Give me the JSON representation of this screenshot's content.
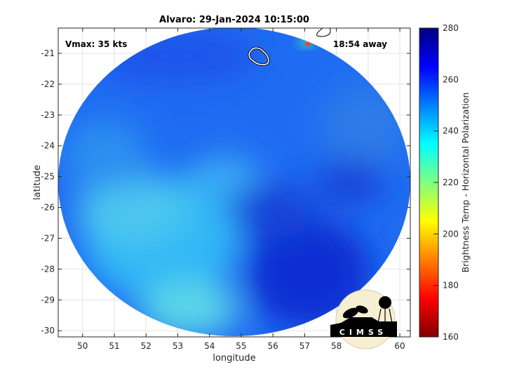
{
  "title": "Alvaro: 29-Jan-2024 10:15:00",
  "annotations": {
    "vmax": "Vmax: 35 kts",
    "away": "18:54 away"
  },
  "xaxis": {
    "label": "longitude",
    "range": [
      49.23,
      60.33
    ],
    "ticks": [
      "50",
      "51",
      "52",
      "53",
      "54",
      "55",
      "56",
      "57",
      "58",
      "59",
      "60"
    ]
  },
  "yaxis": {
    "label": "latitude",
    "range": [
      -30.2,
      -20.18
    ],
    "ticks": [
      "-21",
      "-22",
      "-23",
      "-24",
      "-25",
      "-26",
      "-27",
      "-28",
      "-29",
      "-30"
    ]
  },
  "colorbar": {
    "label": "Brightness Temp - Horizontal Polarization",
    "range": [
      160,
      280
    ],
    "ticks": [
      "160",
      "180",
      "200",
      "220",
      "240",
      "260",
      "280"
    ],
    "colormap": "jet"
  },
  "grid": true,
  "logo": {
    "text": "CIMSS"
  },
  "colors": {
    "swath_base": "#1f6cf2",
    "warm": "#3ad0ff",
    "cold": "#0a2fd0"
  }
}
